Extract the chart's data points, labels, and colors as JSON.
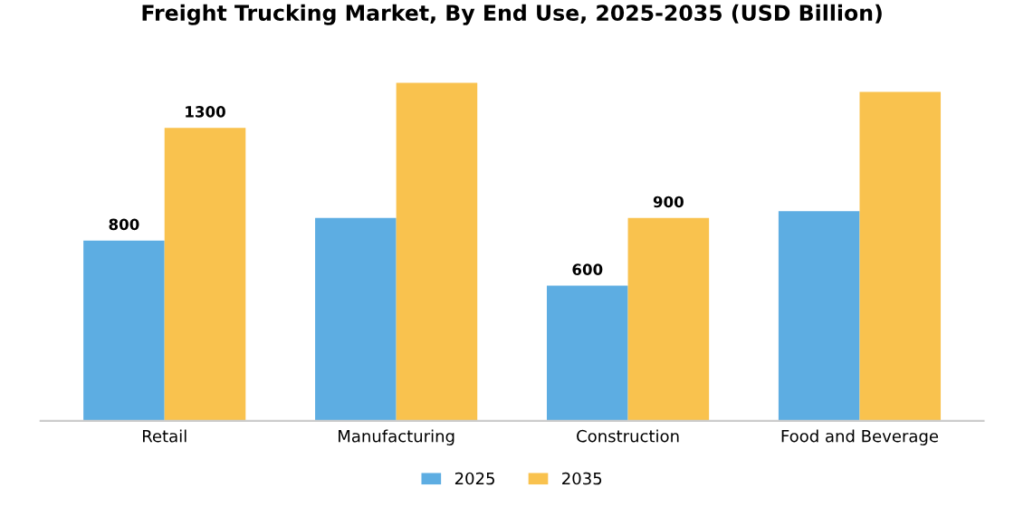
{
  "chart_data": {
    "type": "bar",
    "title": "Freight Trucking Market, By End Use, 2025-2035 (USD Billion)",
    "categories": [
      "Retail",
      "Manufacturing",
      "Construction",
      "Food and Beverage"
    ],
    "series": [
      {
        "name": "2025",
        "color": "#5dade2",
        "values": [
          800,
          900,
          600,
          930
        ],
        "value_labels": [
          "800",
          null,
          "600",
          null
        ]
      },
      {
        "name": "2035",
        "color": "#f9c24e",
        "values": [
          1300,
          1500,
          900,
          1460
        ],
        "value_labels": [
          "1300",
          null,
          "900",
          null
        ]
      }
    ],
    "legend": "bottom",
    "grid": false,
    "tick_labels": "x"
  }
}
